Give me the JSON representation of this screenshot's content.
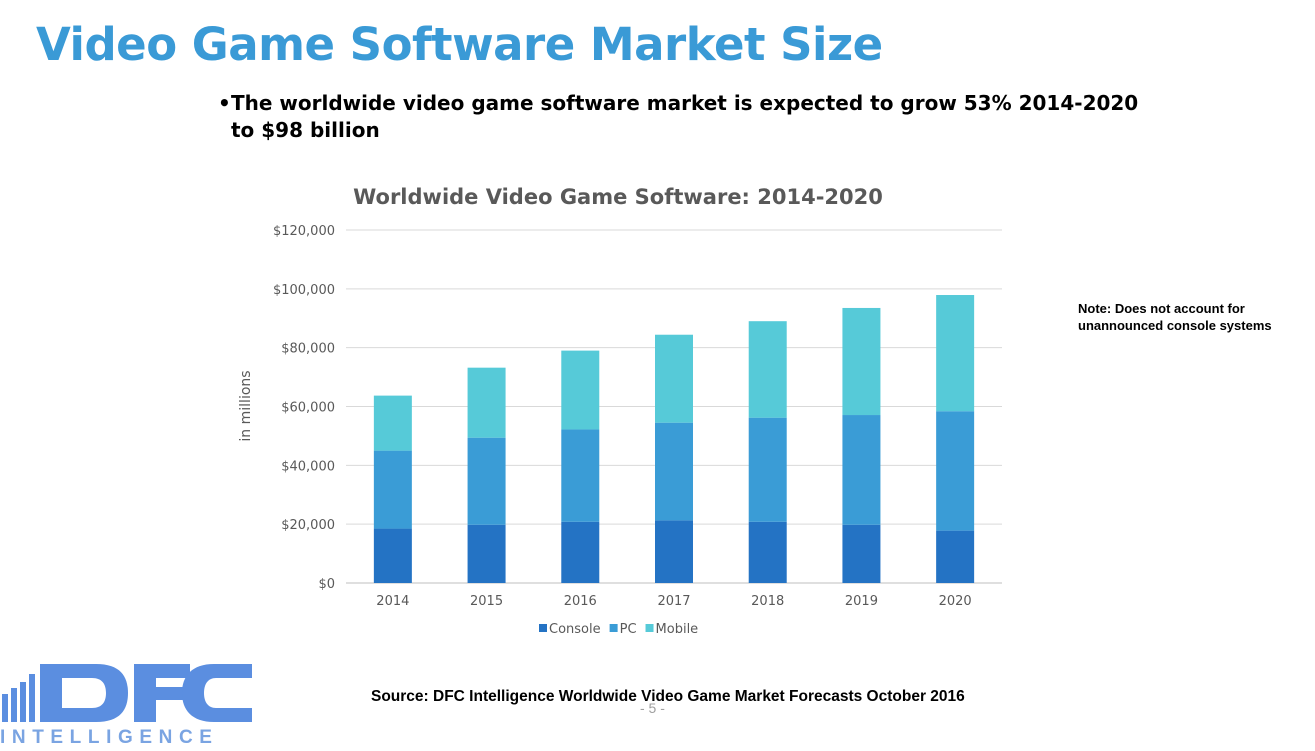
{
  "slide": {
    "title": "Video Game Software Market Size",
    "bullet": "The worldwide video game software market is expected to grow 53% 2014-2020 to $98 billion",
    "note": "Note: Does not account for unannounced console systems",
    "source": "Source: DFC Intelligence Worldwide Video Game Market Forecasts October 2016",
    "page_number": "- 5 -"
  },
  "logo": {
    "name": "DFC",
    "subtitle": "INTELLIGENCE"
  },
  "colors": {
    "title": "#3a9ad6",
    "console": "#2473c4",
    "pc": "#3a9cd6",
    "mobile": "#56cad8",
    "logo": "#5b8ee0"
  },
  "chart_data": {
    "type": "bar",
    "stacked": true,
    "title": "Worldwide Video Game Software: 2014-2020",
    "xlabel": "",
    "ylabel": "in millions",
    "categories": [
      "2014",
      "2015",
      "2016",
      "2017",
      "2018",
      "2019",
      "2020"
    ],
    "series": [
      {
        "name": "Console",
        "values": [
          18500,
          19800,
          20800,
          21300,
          20800,
          19800,
          17800
        ]
      },
      {
        "name": "PC",
        "values": [
          26500,
          29600,
          31400,
          33200,
          35400,
          37300,
          40600
        ]
      },
      {
        "name": "Mobile",
        "values": [
          18700,
          23800,
          26800,
          29900,
          32800,
          36400,
          39500
        ]
      }
    ],
    "ylim": [
      0,
      120000
    ],
    "yticks": [
      0,
      20000,
      40000,
      60000,
      80000,
      100000,
      120000
    ],
    "ytick_labels": [
      "$0",
      "$20,000",
      "$40,000",
      "$60,000",
      "$80,000",
      "$100,000",
      "$120,000"
    ],
    "grid": true,
    "legend": "bottom"
  }
}
